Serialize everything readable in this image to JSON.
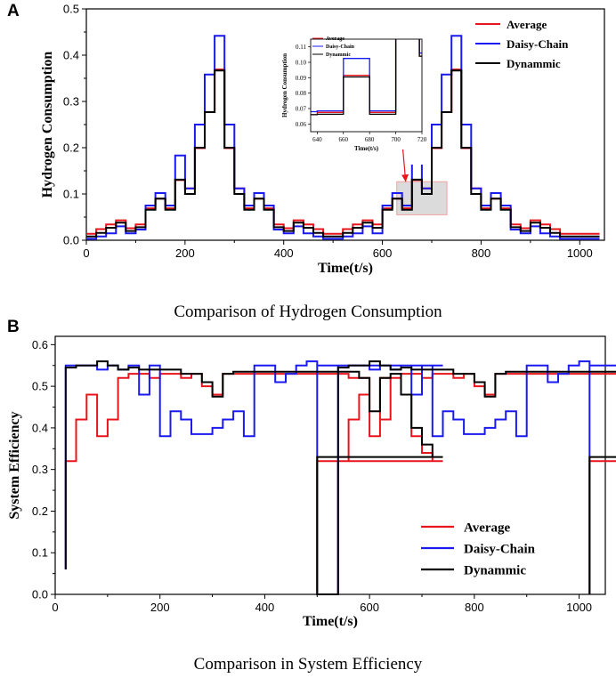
{
  "panel_a": {
    "letter": "A",
    "caption": "Comparison of Hydrogen Consumption"
  },
  "panel_b": {
    "letter": "B",
    "caption": "Comparison in System Efficiency"
  },
  "colors": {
    "average": "#e8141b",
    "daisy_chain": "#1a1af0",
    "dynamic": "#000000",
    "highlight": "#f4a0a0"
  },
  "chart_data": [
    {
      "type": "line",
      "id": "hydrogen",
      "title": "Comparison of Hydrogen Consumption",
      "xlabel": "Time(t/s)",
      "ylabel": "Hydrogen Consumption",
      "xlim": [
        0,
        1050
      ],
      "ylim": [
        0,
        0.5
      ],
      "xticks": [
        "0",
        "200",
        "400",
        "600",
        "800",
        "1000"
      ],
      "yticks": [
        "0.0",
        "0.1",
        "0.2",
        "0.3",
        "0.4",
        "0.5"
      ],
      "step": 20,
      "series": [
        {
          "name": "Average",
          "values": [
            0.014,
            0.024,
            0.034,
            0.043,
            0.026,
            0.034,
            0.069,
            0.09,
            0.069,
            0.13,
            0.112,
            0.199,
            0.277,
            0.369,
            0.199,
            0.112,
            0.069,
            0.09,
            0.069,
            0.034,
            0.026,
            0.043,
            0.034,
            0.024,
            0.014,
            0.014,
            0.024,
            0.034,
            0.043,
            0.034,
            0.069,
            0.09,
            0.069,
            0.13,
            0.112,
            0.199,
            0.277,
            0.369,
            0.199,
            0.112,
            0.069,
            0.09,
            0.069,
            0.034,
            0.026,
            0.043,
            0.034,
            0.024,
            0.014,
            0.014,
            0.014,
            0.014
          ]
        },
        {
          "name": "Daisy-Chain",
          "values": [
            0.003,
            0.008,
            0.015,
            0.03,
            0.015,
            0.023,
            0.075,
            0.102,
            0.075,
            0.183,
            0.112,
            0.25,
            0.358,
            0.442,
            0.25,
            0.112,
            0.075,
            0.102,
            0.075,
            0.023,
            0.015,
            0.03,
            0.015,
            0.008,
            0.003,
            0.003,
            0.008,
            0.015,
            0.03,
            0.015,
            0.075,
            0.102,
            0.075,
            0.183,
            0.112,
            0.25,
            0.358,
            0.442,
            0.25,
            0.112,
            0.075,
            0.102,
            0.075,
            0.023,
            0.015,
            0.03,
            0.015,
            0.008,
            0.003,
            0.003,
            0.003,
            0.003
          ]
        },
        {
          "name": "Dynammic",
          "values": [
            0.008,
            0.016,
            0.027,
            0.038,
            0.02,
            0.028,
            0.066,
            0.09,
            0.066,
            0.131,
            0.1,
            0.2,
            0.277,
            0.367,
            0.2,
            0.1,
            0.066,
            0.09,
            0.066,
            0.028,
            0.02,
            0.038,
            0.027,
            0.016,
            0.008,
            0.008,
            0.016,
            0.027,
            0.038,
            0.027,
            0.066,
            0.09,
            0.066,
            0.131,
            0.1,
            0.2,
            0.277,
            0.367,
            0.2,
            0.1,
            0.066,
            0.09,
            0.066,
            0.028,
            0.02,
            0.038,
            0.027,
            0.016,
            0.008,
            0.008,
            0.008,
            0.008
          ]
        }
      ],
      "legend": "top-right",
      "highlight_range": {
        "x": [
          640,
          720
        ],
        "y": [
          0.055,
          0.115
        ]
      },
      "inset": {
        "xlabel": "Time(t/s)",
        "ylabel": "Hydrogen Consumption",
        "xlim": [
          635,
          720
        ],
        "ylim": [
          0.055,
          0.115
        ],
        "xticks": [
          "640",
          "660",
          "680",
          "700",
          "720"
        ],
        "yticks": [
          "0.06",
          "0.07",
          "0.08",
          "0.09",
          "0.10",
          "0.11"
        ],
        "series": [
          {
            "name": "Average",
            "points": [
              [
                635,
                0.066
              ],
              [
                640,
                0.066
              ],
              [
                640,
                0.0675
              ],
              [
                660,
                0.0675
              ],
              [
                660,
                0.0915
              ],
              [
                680,
                0.0915
              ],
              [
                680,
                0.0675
              ],
              [
                700,
                0.0675
              ],
              [
                700,
                0.13
              ],
              [
                718,
                0.13
              ],
              [
                718,
                0.104
              ],
              [
                720,
                0.104
              ]
            ]
          },
          {
            "name": "Daisy-Chain",
            "points": [
              [
                635,
                0.068
              ],
              [
                640,
                0.068
              ],
              [
                640,
                0.0685
              ],
              [
                660,
                0.0685
              ],
              [
                660,
                0.1025
              ],
              [
                680,
                0.1025
              ],
              [
                680,
                0.0685
              ],
              [
                700,
                0.0685
              ],
              [
                700,
                0.13
              ],
              [
                718,
                0.13
              ],
              [
                718,
                0.106
              ],
              [
                720,
                0.106
              ]
            ]
          },
          {
            "name": "Dynammic",
            "points": [
              [
                635,
                0.066
              ],
              [
                640,
                0.066
              ],
              [
                640,
                0.0663
              ],
              [
                660,
                0.0663
              ],
              [
                660,
                0.0905
              ],
              [
                680,
                0.0905
              ],
              [
                680,
                0.0663
              ],
              [
                700,
                0.0663
              ],
              [
                700,
                0.13
              ],
              [
                718,
                0.13
              ],
              [
                718,
                0.104
              ],
              [
                720,
                0.104
              ]
            ]
          }
        ],
        "legend": [
          "Average",
          "Daisy-Chain",
          "Dynammic"
        ]
      }
    },
    {
      "type": "line",
      "id": "efficiency",
      "title": "Comparison in System Efficiency",
      "xlabel": "Time(t/s)",
      "ylabel": "System Efficiency",
      "xlim": [
        0,
        1050
      ],
      "ylim": [
        0,
        0.62
      ],
      "xticks": [
        "0",
        "200",
        "400",
        "600",
        "800",
        "1000"
      ],
      "yticks": [
        "0.0",
        "0.1",
        "0.2",
        "0.3",
        "0.4",
        "0.5",
        "0.6"
      ],
      "step": 20,
      "segments": [
        {
          "x_start": 20,
          "x_end": 500,
          "drop_start": 0.06,
          "drop_end": 0.06
        },
        {
          "x_start": 540,
          "x_end": 1020,
          "drop_start": 0.0,
          "drop_end": 0.06
        }
      ],
      "series": [
        {
          "name": "Average",
          "values": [
            0.32,
            0.42,
            0.48,
            0.38,
            0.42,
            0.52,
            0.53,
            0.53,
            0.52,
            0.53,
            0.53,
            0.52,
            0.53,
            0.5,
            0.48,
            0.53,
            0.53,
            0.53,
            0.53,
            0.53,
            0.53,
            0.53,
            0.53,
            0.53,
            0.53,
            0.53,
            0.53,
            0.52,
            0.52,
            0.38,
            0.52,
            0.52,
            0.48,
            0.38,
            0.34,
            0.32
          ]
        },
        {
          "name": "Daisy-Chain",
          "values": [
            0.55,
            0.55,
            0.55,
            0.54,
            0.55,
            0.54,
            0.55,
            0.48,
            0.55,
            0.38,
            0.44,
            0.42,
            0.385,
            0.385,
            0.4,
            0.42,
            0.44,
            0.38,
            0.55,
            0.55,
            0.51,
            0.53,
            0.55,
            0.56,
            0.55,
            0.55,
            0.55,
            0.55,
            0.55,
            0.55,
            0.55,
            0.55,
            0.55,
            0.55,
            0.55,
            0.55
          ]
        },
        {
          "name": "Dynammic",
          "values": [
            0.545,
            0.55,
            0.55,
            0.56,
            0.55,
            0.54,
            0.545,
            0.54,
            0.54,
            0.54,
            0.54,
            0.53,
            0.53,
            0.51,
            0.475,
            0.53,
            0.535,
            0.535,
            0.535,
            0.535,
            0.535,
            0.535,
            0.535,
            0.535,
            0.535,
            0.535,
            0.535,
            0.535,
            0.52,
            0.44,
            0.52,
            0.53,
            0.48,
            0.4,
            0.36,
            0.33
          ]
        }
      ],
      "legend": "bottom-right"
    }
  ]
}
